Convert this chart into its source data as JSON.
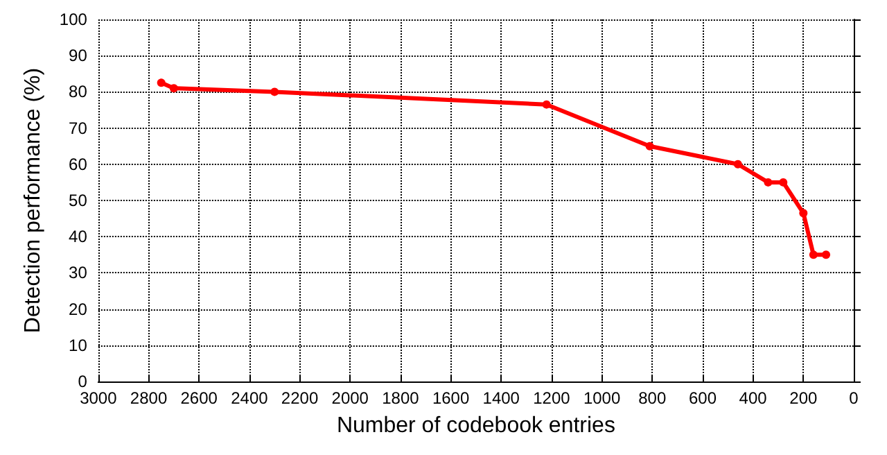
{
  "chart_data": {
    "type": "line",
    "xlabel": "Number of codebook entries",
    "ylabel": "Detection performance (%)",
    "x": [
      2750,
      2700,
      2300,
      1220,
      810,
      460,
      340,
      280,
      200,
      160,
      110
    ],
    "series": [
      {
        "color": "#ff0000",
        "values": [
          82.5,
          81,
          80,
          76.5,
          65,
          60,
          55,
          55,
          46.5,
          35,
          35
        ]
      }
    ],
    "xlim": [
      3000,
      0
    ],
    "xticks": [
      3000,
      2800,
      2600,
      2400,
      2200,
      2000,
      1800,
      1600,
      1400,
      1200,
      1000,
      800,
      600,
      400,
      200,
      0
    ],
    "ylim": [
      0,
      100
    ],
    "yticks": [
      0,
      10,
      20,
      30,
      40,
      50,
      60,
      70,
      80,
      90,
      100
    ],
    "grid": true,
    "marker": "circle",
    "line_style": "solid"
  }
}
